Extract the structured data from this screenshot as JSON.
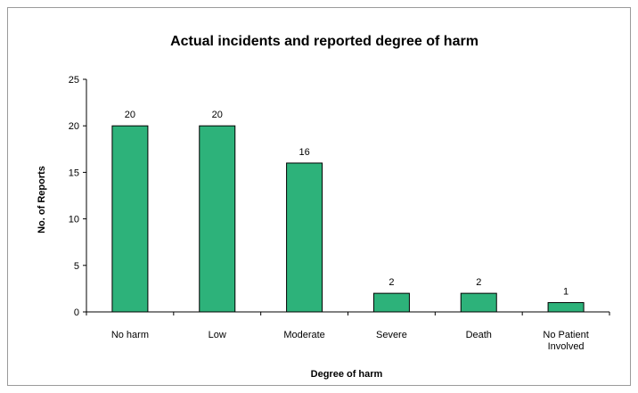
{
  "chart_data": {
    "type": "bar",
    "title": "Actual incidents and reported degree of harm",
    "xlabel": "Degree of harm",
    "ylabel": "No. of Reports",
    "categories": [
      "No harm",
      "Low",
      "Moderate",
      "Severe",
      "Death",
      "No Patient Involved"
    ],
    "category_lines": [
      [
        "No harm"
      ],
      [
        "Low"
      ],
      [
        "Moderate"
      ],
      [
        "Severe"
      ],
      [
        "Death"
      ],
      [
        "No Patient",
        "Involved"
      ]
    ],
    "values": [
      20,
      20,
      16,
      2,
      2,
      1
    ],
    "data_labels": [
      "20",
      "20",
      "16",
      "2",
      "2",
      "1"
    ],
    "ylim": [
      0,
      25
    ],
    "yticks": [
      "0",
      "5",
      "10",
      "15",
      "20",
      "25"
    ],
    "ytick_values": [
      0,
      5,
      10,
      15,
      20,
      25
    ],
    "grid": false,
    "legend": "none",
    "bar_color": "#2db27a",
    "bar_edge_color": "#000000"
  }
}
